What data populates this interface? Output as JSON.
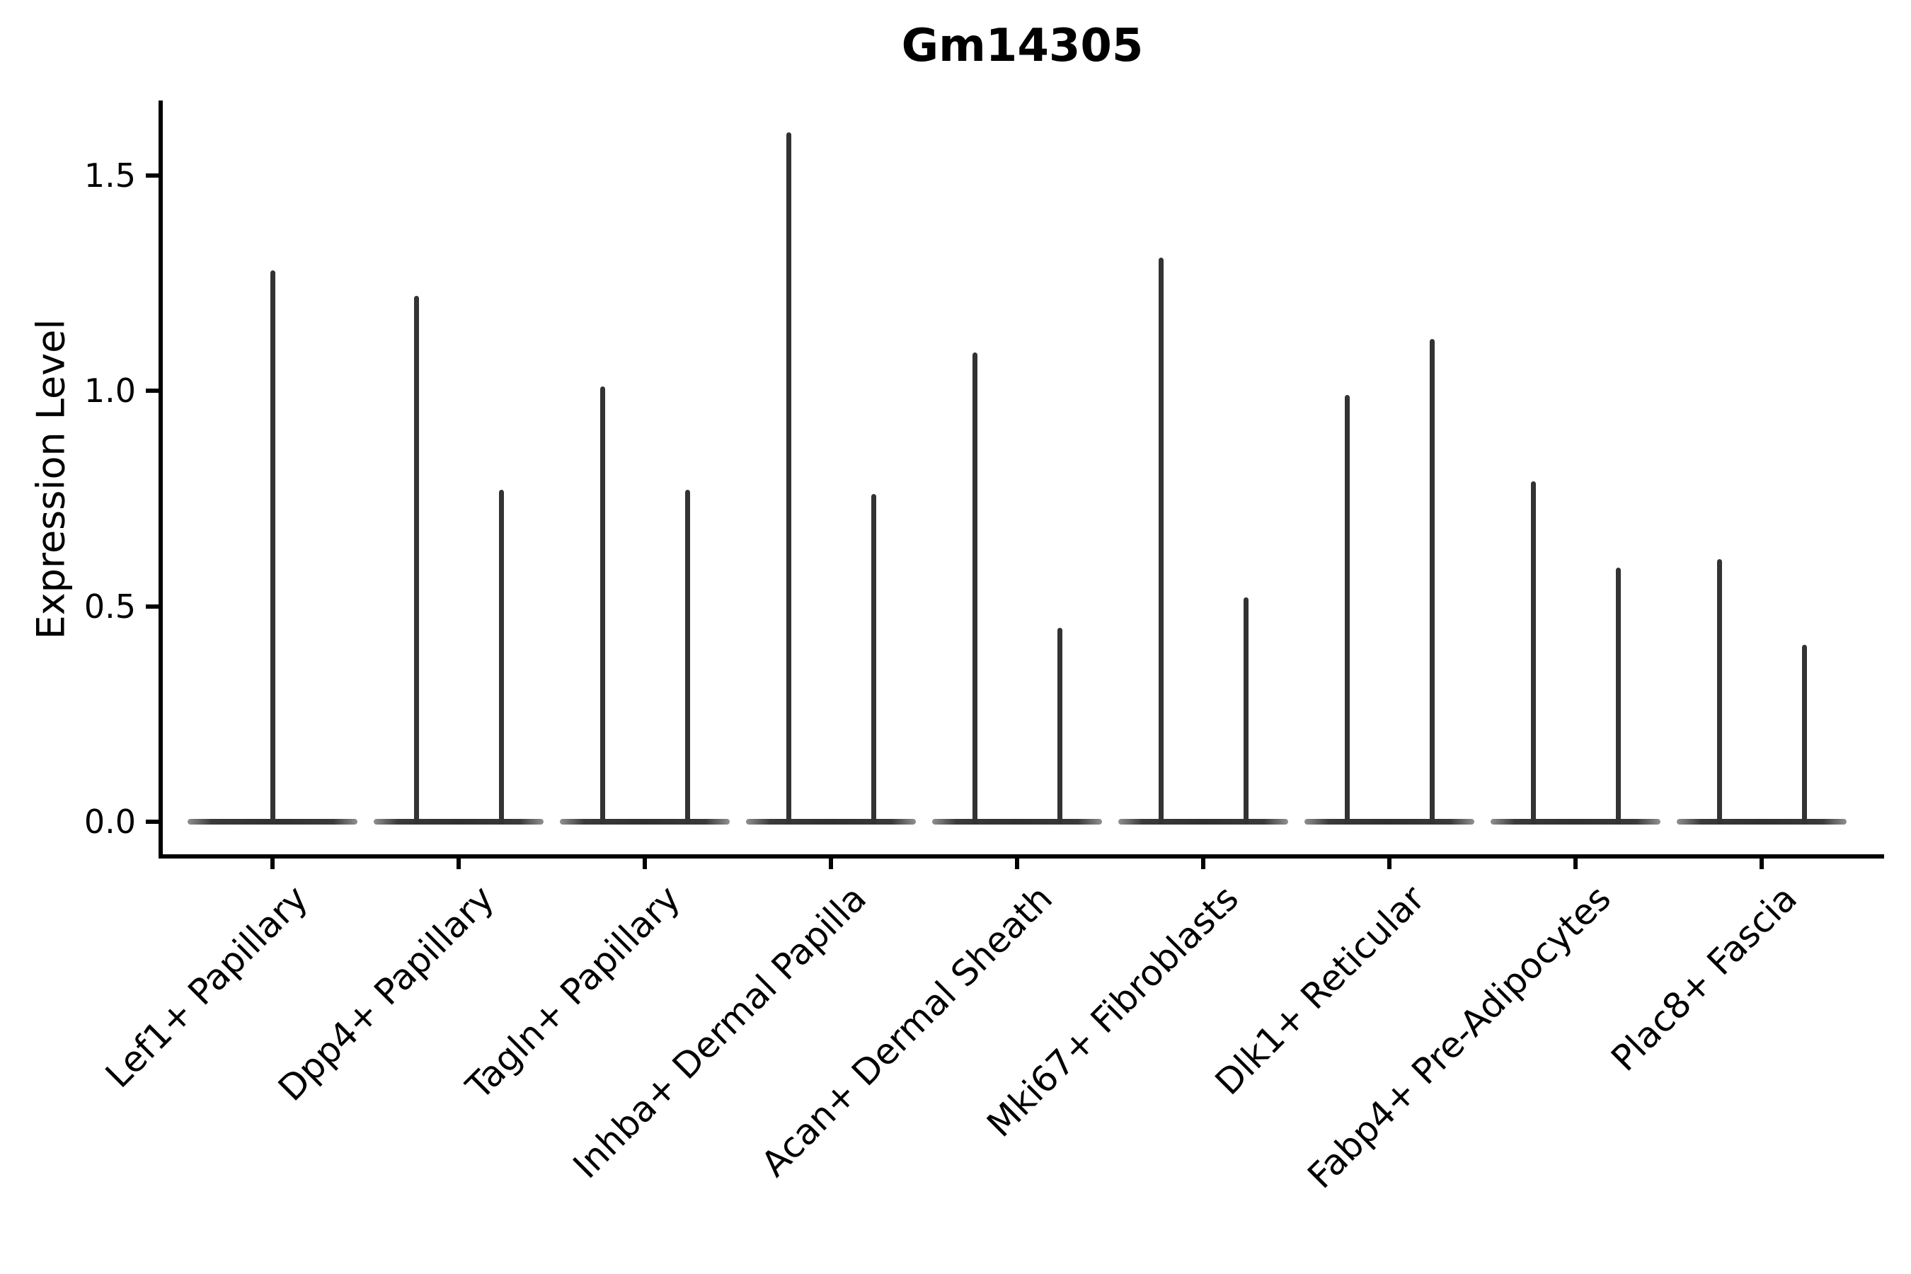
{
  "title": "Gm14305",
  "y_axis": {
    "label": "Expression Level",
    "tick_labels": [
      "0.0",
      "0.5",
      "1.0",
      "1.5"
    ],
    "tick_values": [
      0.0,
      0.5,
      1.0,
      1.5
    ]
  },
  "colors": {
    "violin": "#333333",
    "axis": "#000000",
    "background": "#ffffff"
  },
  "chart_data": {
    "type": "violin",
    "title": "Gm14305",
    "xlabel": "",
    "ylabel": "Expression Level",
    "ylim": [
      0,
      1.67
    ],
    "yticks": [
      0.0,
      0.5,
      1.0,
      1.5
    ],
    "grid": false,
    "legend": "none",
    "categories": [
      "Lef1+ Papillary",
      "Dpp4+ Papillary",
      "Tagln+ Papillary",
      "Inhba+ Dermal Papilla",
      "Acan+ Dermal Sheath",
      "Mki67+ Fibroblasts",
      "Dlk1+ Reticular",
      "Fabp4+ Pre-Adipocytes",
      "Plac8+ Fascia"
    ],
    "violins": [
      {
        "category": "Lef1+ Papillary",
        "maxima": [
          1.28
        ]
      },
      {
        "category": "Dpp4+ Papillary",
        "maxima": [
          1.22,
          0.77
        ]
      },
      {
        "category": "Tagln+ Papillary",
        "maxima": [
          1.01,
          0.77
        ]
      },
      {
        "category": "Inhba+ Dermal Papilla",
        "maxima": [
          1.6,
          0.76
        ]
      },
      {
        "category": "Acan+ Dermal Sheath",
        "maxima": [
          1.09,
          0.45
        ]
      },
      {
        "category": "Mki67+ Fibroblasts",
        "maxima": [
          1.31,
          0.52
        ]
      },
      {
        "category": "Dlk1+ Reticular",
        "maxima": [
          0.99,
          1.12
        ]
      },
      {
        "category": "Fabp4+ Pre-Adipocytes",
        "maxima": [
          0.79,
          0.59
        ]
      },
      {
        "category": "Plac8+ Fascia",
        "maxima": [
          0.61,
          0.41
        ]
      }
    ],
    "description": "Violin plot; most expression mass at 0 so each violin collapses to a flat base at y=0 with a thin central spike rising to its maximum expression value. Category 1 has a single full-width violin; categories 2-9 each contain two side-by-side violins."
  }
}
